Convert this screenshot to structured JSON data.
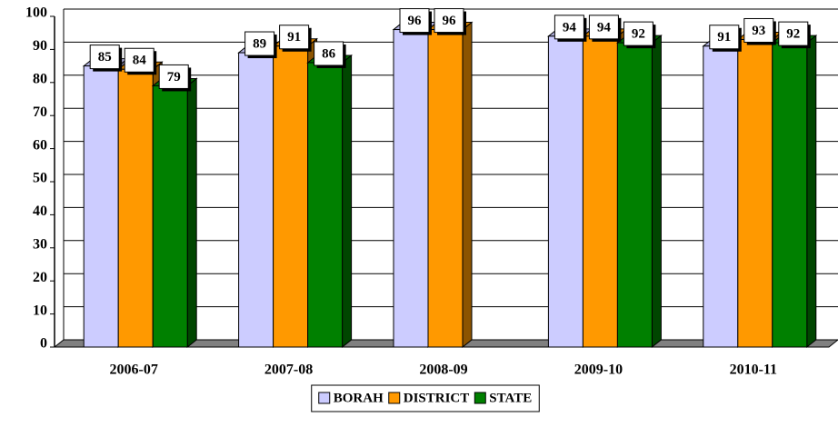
{
  "chart_data": {
    "type": "bar3d",
    "categories": [
      "2006-07",
      "2007-08",
      "2008-09",
      "2009-10",
      "2010-11"
    ],
    "series": [
      {
        "name": "BORAH",
        "color": "#ccccff",
        "values": [
          85,
          89,
          96,
          94,
          91
        ]
      },
      {
        "name": "DISTRICT",
        "color": "#ff9900",
        "values": [
          84,
          91,
          96,
          94,
          93
        ]
      },
      {
        "name": "STATE",
        "color": "#008000",
        "values": [
          79,
          86,
          null,
          92,
          92
        ]
      }
    ],
    "ylim": [
      0,
      100
    ],
    "yticks": [
      0,
      10,
      20,
      30,
      40,
      50,
      60,
      70,
      80,
      90,
      100
    ],
    "grid": true,
    "legend": "bottom"
  }
}
